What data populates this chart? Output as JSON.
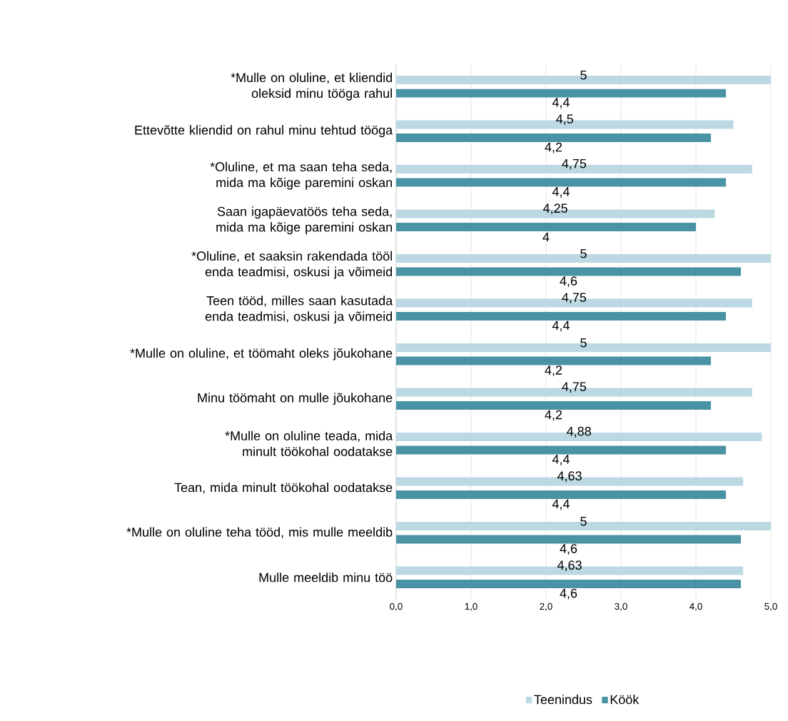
{
  "chart_data": {
    "type": "bar",
    "orientation": "horizontal",
    "categories": [
      "*Mulle on oluline, et kliendid oleksid minu tööga rahul",
      "Ettevõtte kliendid on rahul minu tehtud tööga",
      "*Oluline, et ma saan teha seda, mida ma kõige paremini oskan",
      "Saan igapäevatöös teha seda, mida ma kõige paremini oskan",
      "*Oluline, et saaksin rakendada tööl enda teadmisi, oskusi ja võimeid",
      "Teen tööd, milles saan kasutada enda teadmisi, oskusi ja võimeid",
      "*Mulle on oluline, et töömaht oleks jõukohane",
      "Minu töömaht on mulle jõukohane",
      "*Mulle on oluline teada, mida minult töökohal oodatakse",
      "Tean, mida minult töökohal oodatakse",
      "*Mulle on oluline teha tööd, mis mulle meeldib",
      "Mulle meeldib minu töö"
    ],
    "series": [
      {
        "name": "Teenindus",
        "color": "#bcd8e3",
        "values": [
          5,
          4.5,
          4.75,
          4.25,
          5,
          4.75,
          5,
          4.75,
          4.88,
          4.63,
          5,
          4.63
        ],
        "value_labels": [
          "5",
          "4,5",
          "4,75",
          "4,25",
          "5",
          "4,75",
          "5",
          "4,75",
          "4,88",
          "4,63",
          "5",
          "4,63"
        ]
      },
      {
        "name": "Köök",
        "color": "#4a93a5",
        "values": [
          4.4,
          4.2,
          4.4,
          4,
          4.6,
          4.4,
          4.2,
          4.2,
          4.4,
          4.4,
          4.6,
          4.6
        ],
        "value_labels": [
          "4,4",
          "4,2",
          "4,4",
          "4",
          "4,6",
          "4,4",
          "4,2",
          "4,2",
          "4,4",
          "4,4",
          "4,6",
          "4,6"
        ]
      }
    ],
    "xlim": [
      0,
      5
    ],
    "xticks": [
      {
        "value": 0,
        "label": "0,0"
      },
      {
        "value": 1,
        "label": "1,0"
      },
      {
        "value": 2,
        "label": "2,0"
      },
      {
        "value": 3,
        "label": "3,0"
      },
      {
        "value": 4,
        "label": "4,0"
      },
      {
        "value": 5,
        "label": "5,0"
      }
    ],
    "grid": "x",
    "legend": "bottom"
  }
}
